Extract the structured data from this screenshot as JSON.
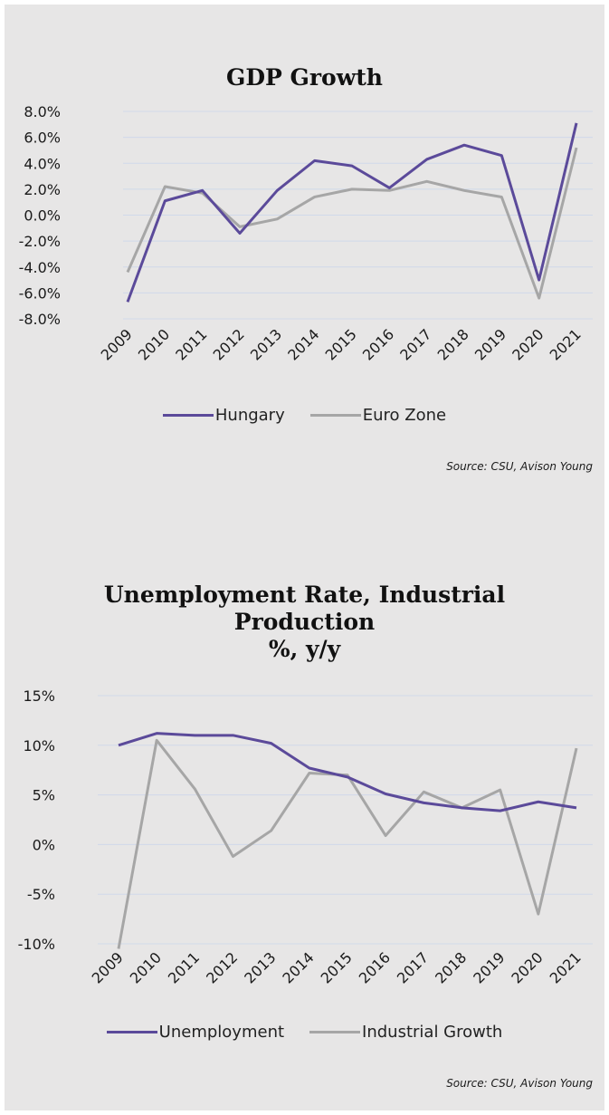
{
  "colors": {
    "hungary": "#5b4a9a",
    "euro_zone": "#a6a6a6",
    "unemployment": "#5b4a9a",
    "industrial_growth": "#a6a6a6",
    "grid": "#d0d9ea"
  },
  "chart_data": [
    {
      "type": "line",
      "title": "GDP Growth",
      "xlabel": "",
      "ylabel": "",
      "x": [
        "2009",
        "2010",
        "2011",
        "2012",
        "2013",
        "2014",
        "2015",
        "2016",
        "2017",
        "2018",
        "2019",
        "2020",
        "2021"
      ],
      "y_ticks": [
        "8.0%",
        "6.0%",
        "4.0%",
        "2.0%",
        "0.0%",
        "-2.0%",
        "-4.0%",
        "-6.0%",
        "-8.0%"
      ],
      "ylim": [
        -8,
        8
      ],
      "grid": true,
      "legend_position": "bottom",
      "series": [
        {
          "name": "Hungary",
          "values": [
            -6.7,
            1.1,
            1.9,
            -1.4,
            1.9,
            4.2,
            3.8,
            2.1,
            4.3,
            5.4,
            4.6,
            -5.0,
            7.1
          ]
        },
        {
          "name": "Euro Zone",
          "values": [
            -4.4,
            2.2,
            1.7,
            -0.9,
            -0.3,
            1.4,
            2.0,
            1.9,
            2.6,
            1.9,
            1.4,
            -6.4,
            5.2
          ]
        }
      ],
      "source": "Source: CSU, Avison Young"
    },
    {
      "type": "line",
      "title": "Unemployment Rate, Industrial Production %, y/y",
      "title_lines": [
        "Unemployment Rate, Industrial",
        "Production",
        "%, y/y"
      ],
      "xlabel": "",
      "ylabel": "",
      "x": [
        "2009",
        "2010",
        "2011",
        "2012",
        "2013",
        "2014",
        "2015",
        "2016",
        "2017",
        "2018",
        "2019",
        "2020",
        "2021"
      ],
      "y_ticks": [
        "15%",
        "10%",
        "5%",
        "0%",
        "-5%",
        "-10%"
      ],
      "ylim": [
        -10,
        15
      ],
      "grid": true,
      "legend_position": "bottom",
      "series": [
        {
          "name": "Unemployment",
          "values": [
            10.0,
            11.2,
            11.0,
            11.0,
            10.2,
            7.7,
            6.8,
            5.1,
            4.2,
            3.7,
            3.4,
            4.3,
            3.7
          ]
        },
        {
          "name": "Industrial Growth",
          "values": [
            -10.5,
            10.5,
            5.6,
            -1.2,
            1.4,
            7.2,
            7.0,
            0.9,
            5.3,
            3.7,
            5.5,
            -7.0,
            9.7
          ]
        }
      ],
      "source": "Source:  CSU, Avison Young"
    }
  ]
}
